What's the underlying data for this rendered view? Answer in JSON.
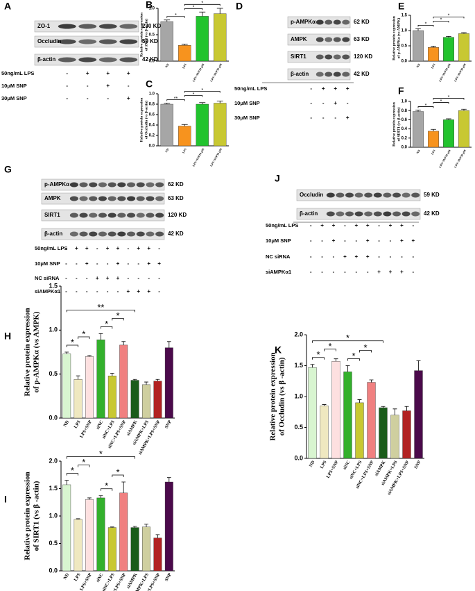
{
  "blots": [
    {
      "panel": "A",
      "proteins": [
        {
          "name": "ZO-1",
          "size": "230 KD"
        },
        {
          "name": "Occludin",
          "size": "59 KD"
        },
        {
          "name": "β-actin",
          "size": "42 KD"
        }
      ],
      "conditions": [
        {
          "name": "50ng/mL LPS",
          "lanes": [
            "-",
            "+",
            "+",
            "+"
          ]
        },
        {
          "name": "10μM SNP",
          "lanes": [
            "-",
            "-",
            "+",
            "-"
          ]
        },
        {
          "name": "30μM SNP",
          "lanes": [
            "-",
            "-",
            "-",
            "+"
          ]
        }
      ]
    },
    {
      "panel": "D",
      "proteins": [
        {
          "name": "p-AMPKα",
          "size": "62 KD"
        },
        {
          "name": "AMPK",
          "size": "63 KD"
        },
        {
          "name": "SIRT1",
          "size": "120 KD"
        },
        {
          "name": "β-actin",
          "size": "42 KD"
        }
      ],
      "conditions": [
        {
          "name": "50ng/mL LPS",
          "lanes": [
            "-",
            "+",
            "+",
            "+"
          ]
        },
        {
          "name": "10μM SNP",
          "lanes": [
            "-",
            "-",
            "+",
            "-"
          ]
        },
        {
          "name": "30μM SNP",
          "lanes": [
            "-",
            "-",
            "-",
            "+"
          ]
        }
      ]
    },
    {
      "panel": "G",
      "proteins": [
        {
          "name": "p-AMPKα",
          "size": "62 KD"
        },
        {
          "name": "AMPK",
          "size": "63 KD"
        },
        {
          "name": "SIRT1",
          "size": "120 KD"
        },
        {
          "name": "β-actin",
          "size": "42 KD"
        }
      ],
      "conditions": [
        {
          "name": "50ng/mL LPS",
          "lanes": [
            "-",
            "+",
            "+",
            "-",
            "+",
            "+",
            "-",
            "+",
            "+",
            "-"
          ]
        },
        {
          "name": "10μM SNP",
          "lanes": [
            "-",
            "-",
            "+",
            "-",
            "-",
            "+",
            "-",
            "-",
            "+",
            "+"
          ]
        },
        {
          "name": "NC siRNA",
          "lanes": [
            "-",
            "-",
            "-",
            "+",
            "+",
            "+",
            "-",
            "-",
            "-",
            "-"
          ]
        },
        {
          "name": "siAMPKα1",
          "lanes": [
            "-",
            "-",
            "-",
            "-",
            "-",
            "-",
            "+",
            "+",
            "+",
            "-"
          ]
        }
      ]
    },
    {
      "panel": "J",
      "proteins": [
        {
          "name": "Occludin",
          "size": "59 KD"
        },
        {
          "name": "β-actin",
          "size": "42 KD"
        }
      ],
      "conditions": [
        {
          "name": "50ng/mL LPS",
          "lanes": [
            "-",
            "+",
            "+",
            "-",
            "+",
            "+",
            "-",
            "+",
            "+",
            "-"
          ]
        },
        {
          "name": "10μM SNP",
          "lanes": [
            "-",
            "-",
            "+",
            "-",
            "-",
            "+",
            "-",
            "-",
            "+",
            "+"
          ]
        },
        {
          "name": "NC siRNA",
          "lanes": [
            "-",
            "-",
            "-",
            "+",
            "+",
            "+",
            "-",
            "-",
            "-",
            "-"
          ]
        },
        {
          "name": "siAMPKα1",
          "lanes": [
            "-",
            "-",
            "-",
            "-",
            "-",
            "-",
            "+",
            "+",
            "+",
            "-"
          ]
        }
      ]
    }
  ],
  "chart_data": [
    {
      "type": "bar",
      "panel": "B",
      "ylabel": [
        "Relative protein expression",
        "of ZO-1 (vs β-actin)"
      ],
      "categories": [
        "ND",
        "LPS",
        "LPS+SNP10 μM",
        "LPS+SNP30 μM"
      ],
      "values": [
        0.75,
        0.3,
        0.85,
        0.9
      ],
      "errors": [
        0.03,
        0.02,
        0.08,
        0.1
      ],
      "colors": [
        "#a6a6a6",
        "#f7931e",
        "#22c32e",
        "#c8c832"
      ],
      "ylim": [
        0,
        1.0
      ],
      "yticks": [
        {
          "value": 0,
          "label": "0.0"
        },
        {
          "value": 0.5,
          "label": "0.5"
        },
        {
          "value": 1.0,
          "label": "1.0"
        }
      ],
      "annotations": [
        {
          "label": "*",
          "between": [
            "ND",
            "LPS"
          ]
        },
        {
          "label": "*",
          "between": [
            "LPS",
            "LPS+SNP10 μM"
          ]
        },
        {
          "label": "*",
          "between": [
            "LPS",
            "LPS+SNP30 μM"
          ]
        }
      ]
    },
    {
      "type": "bar",
      "panel": "C",
      "ylabel": [
        "Relative protein expression",
        "of Occludin (vs β-actin)"
      ],
      "categories": [
        "ND",
        "LPS",
        "LPS+SNP10 μM",
        "LPS+SNP30 μM"
      ],
      "values": [
        0.8,
        0.38,
        0.8,
        0.82
      ],
      "errors": [
        0.02,
        0.03,
        0.03,
        0.04
      ],
      "colors": [
        "#a6a6a6",
        "#f7931e",
        "#22c32e",
        "#c8c832"
      ],
      "ylim": [
        0,
        1.0
      ],
      "yticks": [
        {
          "value": 0,
          "label": "0.0"
        },
        {
          "value": 0.2,
          "label": "0.2"
        },
        {
          "value": 0.4,
          "label": "0.4"
        },
        {
          "value": 0.6,
          "label": "0.6"
        },
        {
          "value": 0.8,
          "label": "0.8"
        },
        {
          "value": 1.0,
          "label": "1.0"
        }
      ],
      "annotations": [
        {
          "label": "**",
          "between": [
            "ND",
            "LPS"
          ]
        },
        {
          "label": "*",
          "between": [
            "LPS",
            "LPS+SNP10 μM"
          ]
        },
        {
          "label": "*",
          "between": [
            "LPS",
            "LPS+SNP30 μM"
          ]
        }
      ]
    },
    {
      "type": "bar",
      "panel": "E",
      "ylabel": [
        "Relative protein expression",
        "of p-AMPKα (vs AMPK)"
      ],
      "categories": [
        "ND",
        "LPS",
        "LPS+SNP10 μM",
        "LPS+SNP30 μM"
      ],
      "values": [
        1.0,
        0.45,
        0.78,
        0.9
      ],
      "errors": [
        0.06,
        0.04,
        0.03,
        0.03
      ],
      "colors": [
        "#a6a6a6",
        "#f7931e",
        "#22c32e",
        "#c8c832"
      ],
      "ylim": [
        0,
        1.5
      ],
      "yticks": [
        {
          "value": 0,
          "label": "0.0"
        },
        {
          "value": 0.5,
          "label": "0.5"
        },
        {
          "value": 1.0,
          "label": "1.0"
        },
        {
          "value": 1.5,
          "label": "1.5"
        }
      ],
      "annotations": [
        {
          "label": "*",
          "between": [
            "ND",
            "LPS"
          ]
        },
        {
          "label": "*",
          "between": [
            "LPS",
            "LPS+SNP10 μM"
          ]
        },
        {
          "label": "*",
          "between": [
            "LPS",
            "LPS+SNP30 μM"
          ]
        }
      ]
    },
    {
      "type": "bar",
      "panel": "F",
      "ylabel": [
        "Relative protein expression",
        "of SIRT1 (vs β-actin)"
      ],
      "categories": [
        "ND",
        "LPS",
        "LPS+SNP10 μM",
        "LPS+SNP30 μM"
      ],
      "values": [
        0.78,
        0.35,
        0.6,
        0.8
      ],
      "errors": [
        0.03,
        0.04,
        0.02,
        0.03
      ],
      "colors": [
        "#a6a6a6",
        "#f7931e",
        "#22c32e",
        "#c8c832"
      ],
      "ylim": [
        0,
        1.0
      ],
      "yticks": [
        {
          "value": 0,
          "label": "0.0"
        },
        {
          "value": 0.2,
          "label": "0.2"
        },
        {
          "value": 0.4,
          "label": "0.4"
        },
        {
          "value": 0.6,
          "label": "0.6"
        },
        {
          "value": 0.8,
          "label": "0.8"
        },
        {
          "value": 1.0,
          "label": "1.0"
        }
      ],
      "annotations": [
        {
          "label": "*",
          "between": [
            "ND",
            "LPS"
          ]
        },
        {
          "label": "*",
          "between": [
            "LPS",
            "LPS+SNP10 μM"
          ]
        },
        {
          "label": "*",
          "between": [
            "LPS",
            "LPS+SNP30 μM"
          ]
        }
      ]
    },
    {
      "type": "bar",
      "panel": "H",
      "ylabel": [
        "Relative protein expression",
        "of p-AMPKα  (vs AMPK)"
      ],
      "categories": [
        "ND",
        "LPS",
        "LPS+SNP",
        "siNC",
        "siNC+LPS",
        "siNC+LPS+SNP",
        "siAMPK",
        "siAMPK+LPS",
        "siAMPK+LPS+SNP",
        "SNP"
      ],
      "values": [
        0.73,
        0.44,
        0.7,
        0.89,
        0.48,
        0.83,
        0.43,
        0.38,
        0.42,
        0.8
      ],
      "errors": [
        0.02,
        0.04,
        0.01,
        0.07,
        0.03,
        0.04,
        0.01,
        0.03,
        0.02,
        0.07
      ],
      "colors": [
        "#d8f5d0",
        "#efe8c0",
        "#fde0e0",
        "#33b02c",
        "#c8c832",
        "#f08080",
        "#1a5c1a",
        "#cfcf9f",
        "#b22222",
        "#4b0a4b"
      ],
      "ylim": [
        0,
        1.5
      ],
      "yticks": [
        {
          "value": 0,
          "label": "0.0"
        },
        {
          "value": 0.5,
          "label": "0.5"
        },
        {
          "value": 1.0,
          "label": "1.0"
        },
        {
          "value": 1.5,
          "label": "1.5"
        }
      ],
      "annotations": [
        {
          "label": "*",
          "between": [
            "ND",
            "LPS"
          ]
        },
        {
          "label": "*",
          "between": [
            "LPS",
            "LPS+SNP"
          ]
        },
        {
          "label": "*",
          "between": [
            "siNC",
            "siNC+LPS"
          ]
        },
        {
          "label": "*",
          "between": [
            "siNC+LPS",
            "siNC+LPS+SNP"
          ]
        },
        {
          "label": "**",
          "between": [
            "ND",
            "siAMPK"
          ]
        }
      ]
    },
    {
      "type": "bar",
      "panel": "K",
      "ylabel": [
        "Relative protein expression",
        "of Occludin (vs β -actin)"
      ],
      "categories": [
        "ND",
        "LPS",
        "LPS+SNP",
        "siNC",
        "siNC+LPS",
        "siNC+LPS+SNP",
        "siAMPK",
        "siAMPK+LPS",
        "siAMPK+LPS+SNP",
        "SNP"
      ],
      "values": [
        1.47,
        0.85,
        1.57,
        1.4,
        0.9,
        1.23,
        0.82,
        0.7,
        0.77,
        1.42
      ],
      "errors": [
        0.05,
        0.02,
        0.04,
        0.1,
        0.05,
        0.04,
        0.02,
        0.1,
        0.07,
        0.16
      ],
      "colors": [
        "#d8f5d0",
        "#efe8c0",
        "#fde0e0",
        "#33b02c",
        "#c8c832",
        "#f08080",
        "#1a5c1a",
        "#cfcf9f",
        "#b22222",
        "#4b0a4b"
      ],
      "ylim": [
        0,
        2.0
      ],
      "yticks": [
        {
          "value": 0,
          "label": "0.0"
        },
        {
          "value": 0.5,
          "label": "0.5"
        },
        {
          "value": 1.0,
          "label": "1.0"
        },
        {
          "value": 1.5,
          "label": "1.5"
        },
        {
          "value": 2.0,
          "label": "2.0"
        }
      ],
      "annotations": [
        {
          "label": "*",
          "between": [
            "ND",
            "LPS"
          ]
        },
        {
          "label": "*",
          "between": [
            "LPS",
            "LPS+SNP"
          ]
        },
        {
          "label": "*",
          "between": [
            "siNC",
            "siNC+LPS"
          ]
        },
        {
          "label": "*",
          "between": [
            "siNC+LPS",
            "siNC+LPS+SNP"
          ]
        },
        {
          "label": "*",
          "between": [
            "ND",
            "siAMPK"
          ]
        }
      ]
    },
    {
      "type": "bar",
      "panel": "I",
      "ylabel": [
        "Relative protein expression",
        "of SIRT1 (vs β -actin)"
      ],
      "categories": [
        "ND",
        "LPS",
        "LPS+SNP",
        "siNC",
        "siNC+LPS",
        "siNC+LPS+SNP",
        "siAMPK",
        "siAMPK+LPS",
        "siAMPK+LPS+SNP",
        "SNP"
      ],
      "values": [
        1.57,
        0.94,
        1.3,
        1.33,
        0.79,
        1.42,
        0.79,
        0.8,
        0.6,
        1.62
      ],
      "errors": [
        0.08,
        0.01,
        0.03,
        0.04,
        0.01,
        0.2,
        0.02,
        0.05,
        0.06,
        0.08
      ],
      "colors": [
        "#d8f5d0",
        "#efe8c0",
        "#fde0e0",
        "#33b02c",
        "#c8c832",
        "#f08080",
        "#1a5c1a",
        "#cfcf9f",
        "#b22222",
        "#4b0a4b"
      ],
      "ylim": [
        0,
        2.0
      ],
      "yticks": [
        {
          "value": 0,
          "label": "0.0"
        },
        {
          "value": 0.5,
          "label": "0.5"
        },
        {
          "value": 1.0,
          "label": "1.0"
        },
        {
          "value": 1.5,
          "label": "1.5"
        },
        {
          "value": 2.0,
          "label": "2.0"
        }
      ],
      "annotations": [
        {
          "label": "*",
          "between": [
            "ND",
            "LPS"
          ]
        },
        {
          "label": "*",
          "between": [
            "LPS",
            "LPS+SNP"
          ]
        },
        {
          "label": "*",
          "between": [
            "siNC",
            "siNC+LPS"
          ]
        },
        {
          "label": "*",
          "between": [
            "siNC+LPS",
            "siNC+LPS+SNP"
          ]
        },
        {
          "label": "*",
          "between": [
            "ND",
            "siAMPK"
          ]
        }
      ]
    }
  ]
}
